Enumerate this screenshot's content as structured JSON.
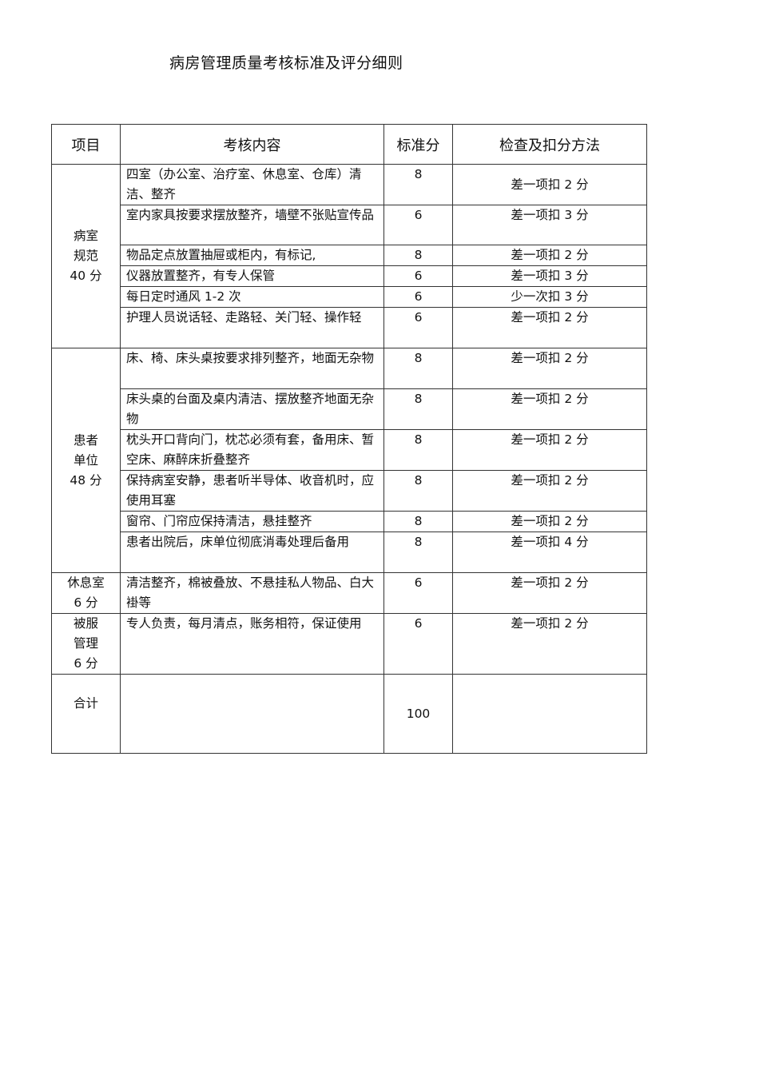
{
  "title": "病房管理质量考核标准及评分细则",
  "headers": [
    "项目",
    "考核内容",
    "标准分",
    "检查及扣分方法"
  ],
  "groups": [
    {
      "category": "病室\n规范\n40 分",
      "rows": [
        {
          "content": "四室（办公室、治疗室、休息室、仓库）清洁、整齐",
          "score": "8",
          "method": "差一项扣  2 分"
        },
        {
          "content": " 室内家具按要求摆放整齐，墙壁不张贴宣传品",
          "score": "6",
          "method": "差一项扣  3 分"
        },
        {
          "content": "物品定点放置抽屉或柜内，有标记,",
          "score": "8",
          "method": "差一项扣  2 分"
        },
        {
          "content": "仪器放置整齐，有专人保管",
          "score": "6",
          "method": "差一项扣  3 分"
        },
        {
          "content": "每日定时通风   1-2 次",
          "score": "6",
          "method": "少一次扣  3 分"
        },
        {
          "content": " 护理人员说话轻、走路轻、关门轻、操作轻",
          "score": "6",
          "method": "差一项扣  2 分"
        }
      ]
    },
    {
      "category": "患者\n 单位\n48 分",
      "rows": [
        {
          "content": " 床、椅、床头桌按要求排列整齐，地面无杂物",
          "score": "8",
          "method": "差一项扣  2 分"
        },
        {
          "content": " 床头桌的台面及桌内清洁、摆放整齐地面无杂物",
          "score": "8",
          "method": "差一项扣  2 分"
        },
        {
          "content": "枕头开口背向门，枕芯必须有套，备用床、暂空床、麻醉床折叠整齐",
          "score": "8",
          "method": "差一项扣  2 分"
        },
        {
          "content": " 保持病室安静，患者听半导体、收音机时，应使用耳塞",
          "score": "8",
          "method": "差一项扣  2 分"
        },
        {
          "content": "窗帘、门帘应保持清洁，悬挂整齐",
          "score": "8",
          "method": "差一项扣  2 分"
        },
        {
          "content": " 患者出院后，床单位彻底消毒处理后备用",
          "score": "8",
          "method": "差一项扣  4 分"
        }
      ]
    },
    {
      "category": "休息室\n6 分",
      "rows": [
        {
          "content": " 清洁整齐，棉被叠放、不悬挂私人物品、白大褂等",
          "score": "6",
          "method": "差一项扣  2 分"
        }
      ]
    },
    {
      "category": "被服\n管理\n6 分",
      "rows": [
        {
          "content": " 专人负责，每月清点，账务相符，保证使用",
          "score": "6",
          "method": "差一项扣  2 分"
        }
      ]
    }
  ],
  "total": {
    "label": "合计",
    "content": "",
    "score": "100",
    "method": ""
  }
}
